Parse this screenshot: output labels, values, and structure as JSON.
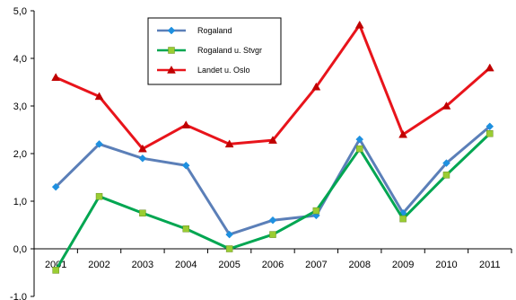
{
  "chart_data": {
    "type": "line",
    "categories": [
      "2001",
      "2002",
      "2003",
      "2004",
      "2005",
      "2006",
      "2007",
      "2008",
      "2009",
      "2010",
      "2011"
    ],
    "ylim": [
      -1.0,
      5.0
    ],
    "yticks": [
      -1.0,
      0.0,
      1.0,
      2.0,
      3.0,
      4.0,
      5.0
    ],
    "ytick_labels": [
      "-1,0",
      "0,0",
      "1,0",
      "2,0",
      "3,0",
      "4,0",
      "5,0"
    ],
    "grid": false,
    "legend_position": "top-left",
    "series": [
      {
        "name": "Rogaland",
        "color": "#5B7FB8",
        "marker_color": "#1E90E0",
        "marker": "diamond",
        "values": [
          1.3,
          2.2,
          1.9,
          1.75,
          0.3,
          0.6,
          0.7,
          2.3,
          0.75,
          1.8,
          2.57
        ]
      },
      {
        "name": "Rogaland u. Stvgr",
        "color": "#00A651",
        "marker_color": "#9ACD32",
        "marker": "square",
        "values": [
          -0.45,
          1.1,
          0.75,
          0.42,
          0.0,
          0.3,
          0.8,
          2.1,
          0.63,
          1.55,
          2.42
        ]
      },
      {
        "name": "Landet u. Oslo",
        "color": "#E8141B",
        "marker_color": "#C00000",
        "marker": "triangle",
        "values": [
          3.6,
          3.2,
          2.1,
          2.6,
          2.2,
          2.28,
          3.4,
          4.7,
          2.4,
          3.0,
          3.8
        ]
      }
    ]
  }
}
